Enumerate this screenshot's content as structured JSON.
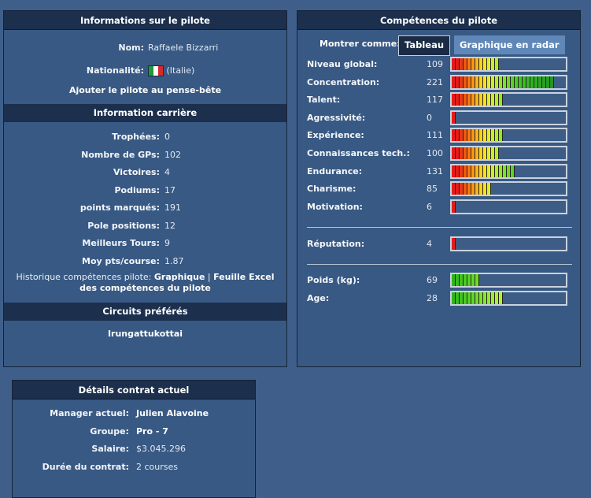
{
  "pilot_info": {
    "title": "Informations sur le pilote",
    "name_label": "Nom:",
    "name": "Raffaele Bizzarri",
    "nationality_label": "Nationalité:",
    "nationality": "(Italie)",
    "flag_colors": [
      "#1f9a3b",
      "#ffffff",
      "#d62a2a"
    ],
    "watchlist_link": "Ajouter le pilote au pense-bête"
  },
  "career": {
    "title": "Information carrière",
    "rows": [
      {
        "label": "Trophées:",
        "value": "0"
      },
      {
        "label": "Nombre de GPs:",
        "value": "102"
      },
      {
        "label": "Victoires:",
        "value": "4"
      },
      {
        "label": "Podiums:",
        "value": "17"
      },
      {
        "label": "points marqués:",
        "value": "191"
      },
      {
        "label": "Pole positions:",
        "value": "12"
      },
      {
        "label": "Meilleurs Tours:",
        "value": "9"
      },
      {
        "label": "Moy pts/course:",
        "value": "1.87"
      }
    ],
    "history_prefix": "Historique compétences pilote:",
    "history_link_chart": "Graphique",
    "history_sep": "|",
    "history_link_excel_1": "Feuille Excel",
    "history_link_excel_2": "des compétences du pilote"
  },
  "circuits": {
    "title": "Circuits préférés",
    "value": "Irungattukottai"
  },
  "skills": {
    "title": "Compétences du pilote",
    "show_as": "Montrer comme:",
    "btn_table": "Tableau",
    "btn_radar": "Graphique en radar",
    "rows": [
      {
        "label": "Niveau global:",
        "value": "109",
        "segments": 12,
        "kind": "skill"
      },
      {
        "label": "Concentration:",
        "value": "221",
        "segments": 26,
        "kind": "skill"
      },
      {
        "label": "Talent:",
        "value": "117",
        "segments": 13,
        "kind": "skill"
      },
      {
        "label": "Agressivité:",
        "value": "0",
        "segments": 1,
        "kind": "skill"
      },
      {
        "label": "Expérience:",
        "value": "111",
        "segments": 13,
        "kind": "skill"
      },
      {
        "label": "Connaissances tech.:",
        "value": "100",
        "segments": 12,
        "kind": "skill"
      },
      {
        "label": "Endurance:",
        "value": "131",
        "segments": 16,
        "kind": "skill"
      },
      {
        "label": "Charisme:",
        "value": "85",
        "segments": 10,
        "kind": "skill"
      },
      {
        "label": "Motivation:",
        "value": "6",
        "segments": 1,
        "kind": "skill"
      }
    ],
    "reputation": {
      "label": "Réputation:",
      "value": "4",
      "segments": 1,
      "kind": "skill"
    },
    "physical": [
      {
        "label": "Poids (kg):",
        "value": "69",
        "segments": 7,
        "kind": "green"
      },
      {
        "label": "Age:",
        "value": "28",
        "segments": 13,
        "kind": "green"
      }
    ]
  },
  "contract": {
    "title": "Détails contrat actuel",
    "rows": [
      {
        "label": "Manager actuel:",
        "value": "Julien Alavoine",
        "bold": true
      },
      {
        "label": "Groupe:",
        "value": "Pro - 7",
        "bold": true
      },
      {
        "label": "Salaire:",
        "value": "$3.045.296",
        "bold": false
      },
      {
        "label": "Durée du contrat:",
        "value": "2 courses",
        "bold": false
      }
    ]
  }
}
